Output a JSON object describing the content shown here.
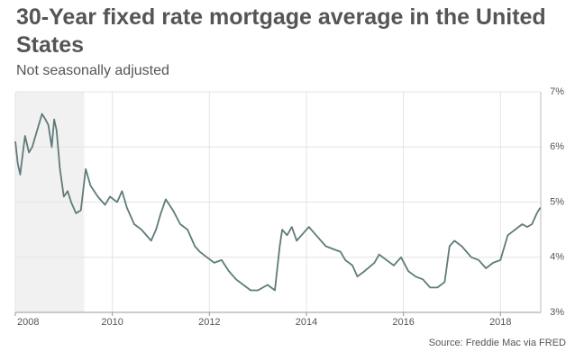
{
  "chart_data": {
    "type": "line",
    "title": "30-Year fixed rate mortgage average in the United States",
    "subtitle": "Not seasonally adjusted",
    "source": "Source: Freddie Mac via FRED",
    "shaded_region": [
      2008.0,
      2009.42
    ],
    "x": [
      2008.0,
      2008.05,
      2008.1,
      2008.17,
      2008.2,
      2008.28,
      2008.35,
      2008.45,
      2008.55,
      2008.62,
      2008.68,
      2008.75,
      2008.8,
      2008.85,
      2008.92,
      2009.0,
      2009.08,
      2009.15,
      2009.25,
      2009.35,
      2009.45,
      2009.55,
      2009.7,
      2009.85,
      2009.95,
      2010.1,
      2010.2,
      2010.3,
      2010.45,
      2010.6,
      2010.8,
      2010.9,
      2011.0,
      2011.1,
      2011.25,
      2011.4,
      2011.55,
      2011.7,
      2011.8,
      2011.95,
      2012.1,
      2012.25,
      2012.4,
      2012.55,
      2012.7,
      2012.85,
      2013.0,
      2013.2,
      2013.35,
      2013.45,
      2013.5,
      2013.6,
      2013.7,
      2013.8,
      2013.95,
      2014.05,
      2014.2,
      2014.4,
      2014.55,
      2014.7,
      2014.8,
      2014.95,
      2015.05,
      2015.2,
      2015.4,
      2015.5,
      2015.65,
      2015.8,
      2015.95,
      2016.1,
      2016.25,
      2016.4,
      2016.55,
      2016.7,
      2016.85,
      2016.95,
      2017.05,
      2017.2,
      2017.4,
      2017.55,
      2017.7,
      2017.85,
      2018.0,
      2018.15,
      2018.3,
      2018.45,
      2018.55,
      2018.65,
      2018.75,
      2018.82
    ],
    "series": [
      {
        "color": "#5f7b79",
        "values": [
          6.1,
          5.7,
          5.5,
          6.0,
          6.2,
          5.9,
          6.0,
          6.3,
          6.6,
          6.5,
          6.4,
          6.0,
          6.5,
          6.3,
          5.6,
          5.1,
          5.2,
          5.0,
          4.8,
          4.85,
          5.6,
          5.3,
          5.1,
          4.95,
          5.1,
          5.0,
          5.2,
          4.9,
          4.6,
          4.5,
          4.3,
          4.5,
          4.8,
          5.05,
          4.85,
          4.6,
          4.5,
          4.2,
          4.1,
          4.0,
          3.9,
          3.95,
          3.75,
          3.6,
          3.5,
          3.4,
          3.4,
          3.5,
          3.4,
          4.2,
          4.5,
          4.4,
          4.55,
          4.3,
          4.45,
          4.55,
          4.4,
          4.2,
          4.15,
          4.1,
          3.95,
          3.85,
          3.65,
          3.75,
          3.9,
          4.05,
          3.95,
          3.85,
          4.0,
          3.75,
          3.65,
          3.6,
          3.45,
          3.45,
          3.55,
          4.2,
          4.3,
          4.2,
          4.0,
          3.95,
          3.8,
          3.9,
          3.95,
          4.4,
          4.5,
          4.6,
          4.55,
          4.6,
          4.8,
          4.9
        ]
      }
    ],
    "xlim": [
      2008.0,
      2018.83
    ],
    "xticks": [
      2008,
      2010,
      2012,
      2014,
      2016,
      2018
    ],
    "ylim": [
      3,
      7
    ],
    "yticks": [
      {
        "value": 3,
        "label": "3%"
      },
      {
        "value": 4,
        "label": "4%"
      },
      {
        "value": 5,
        "label": "5%"
      },
      {
        "value": 6,
        "label": "6%"
      },
      {
        "value": 7,
        "label": "7%"
      }
    ],
    "grid": true
  }
}
